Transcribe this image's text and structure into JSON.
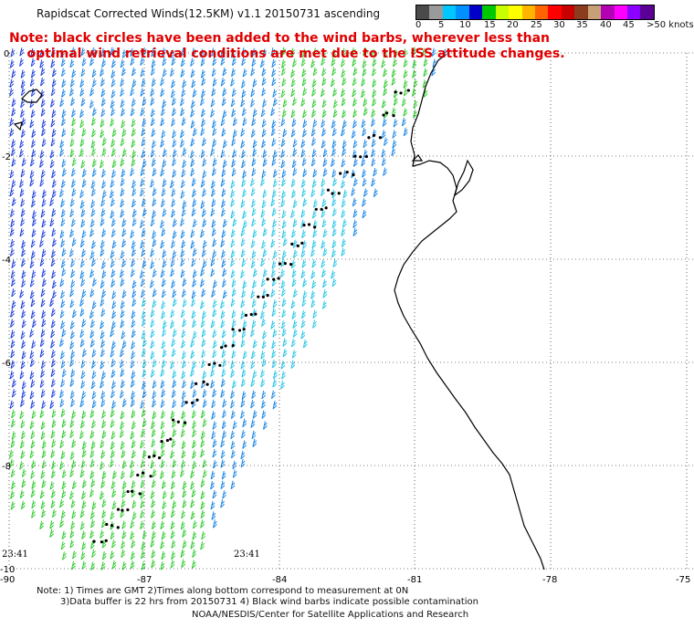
{
  "title": "Rapidscat Corrected Winds(12.5KM) v1.1 20150731 ascending",
  "note_line1": "Note: black circles have been added to the wind barbs, wherever less than",
  "note_line2": "optimal wind retrieval conditions are met due to the ISS attitude changes.",
  "legend": {
    "labels": [
      "0",
      "5",
      "10",
      "15",
      "20",
      "25",
      "30",
      "35",
      "40",
      "45",
      ">50 knots"
    ],
    "colors": [
      "#4a4a4a",
      "#9a9a9a",
      "#00c8ff",
      "#0090ff",
      "#0000c8",
      "#00c800",
      "#c8ff00",
      "#ffff00",
      "#ffb400",
      "#ff6400",
      "#ff0000",
      "#c80000",
      "#8c3c1e",
      "#c8a078",
      "#b400b4",
      "#ff00ff",
      "#8c00ff",
      "#5a0096"
    ]
  },
  "axes": {
    "lat_ticks": [
      "0",
      "-2",
      "-4",
      "-6",
      "-8",
      "-10"
    ],
    "lon_ticks": [
      "-90",
      "-87",
      "-84",
      "-81",
      "-78",
      "-75"
    ]
  },
  "time_labels": [
    "23:41",
    "23:41"
  ],
  "footnote_line1": "Note: 1) Times are GMT 2)Times along bottom correspond to measurement at 0N",
  "footnote_line2": "3)Data buffer is 22 hrs from 20150731 4) Black wind barbs indicate possible contamination",
  "credit": "NOAA/NESDIS/Center for Satellite Applications and Research",
  "colors": {
    "barb_green": "#33cc33",
    "barb_blue": "#2244dd",
    "barb_mid": "#1e88e5",
    "barb_cyan": "#29c6e6",
    "coast": "#000000",
    "grid": "#000000",
    "note_red": "#e00000"
  }
}
